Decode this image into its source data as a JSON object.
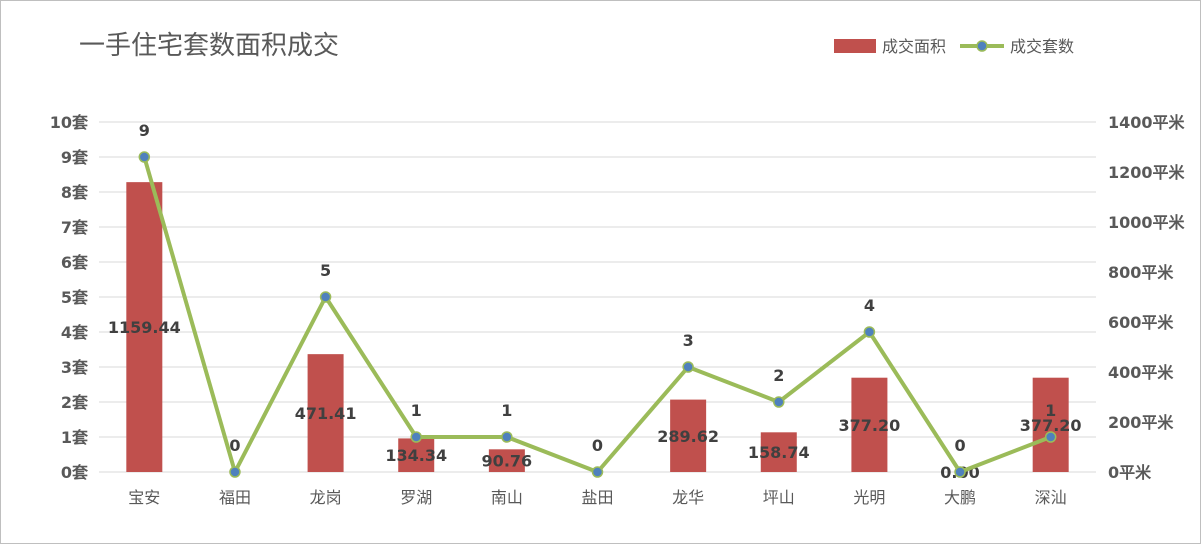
{
  "chart_data": {
    "type": "bar+line",
    "title": "一手住宅套数面积成交",
    "categories": [
      "宝安",
      "福田",
      "龙岗",
      "罗湖",
      "南山",
      "盐田",
      "龙华",
      "坪山",
      "光明",
      "大鹏",
      "深汕"
    ],
    "series": [
      {
        "name": "成交面积",
        "type": "bar",
        "axis": "right",
        "values": [
          1159.44,
          0,
          471.41,
          134.34,
          90.76,
          0,
          289.62,
          158.74,
          377.2,
          0.0,
          377.2
        ],
        "labels": [
          "1159.44",
          "",
          "471.41",
          "134.34",
          "90.76",
          "",
          "289.62",
          "158.74",
          "377.20",
          "0.00",
          "377.20"
        ],
        "color": "#c0504d"
      },
      {
        "name": "成交套数",
        "type": "line",
        "axis": "left",
        "values": [
          9,
          0,
          5,
          1,
          1,
          0,
          3,
          2,
          4,
          0,
          1
        ],
        "labels": [
          "9",
          "0",
          "5",
          "1",
          "1",
          "0",
          "3",
          "2",
          "4",
          "0",
          "1"
        ],
        "color": "#9bbb59",
        "marker_color": "#4f81bd"
      }
    ],
    "y_left": {
      "min": 0,
      "max": 10,
      "step": 1,
      "unit": "套",
      "tick_labels": [
        "0套",
        "1套",
        "2套",
        "3套",
        "4套",
        "5套",
        "6套",
        "7套",
        "8套",
        "9套",
        "10套"
      ]
    },
    "y_right": {
      "min": 0,
      "max": 1400,
      "step": 200,
      "unit": "平米",
      "tick_labels": [
        "0平米",
        "200平米",
        "400平米",
        "600平米",
        "800平米",
        "1000平米",
        "1200平米",
        "1400平米"
      ]
    },
    "grid": true,
    "legend_position": "top-right"
  }
}
